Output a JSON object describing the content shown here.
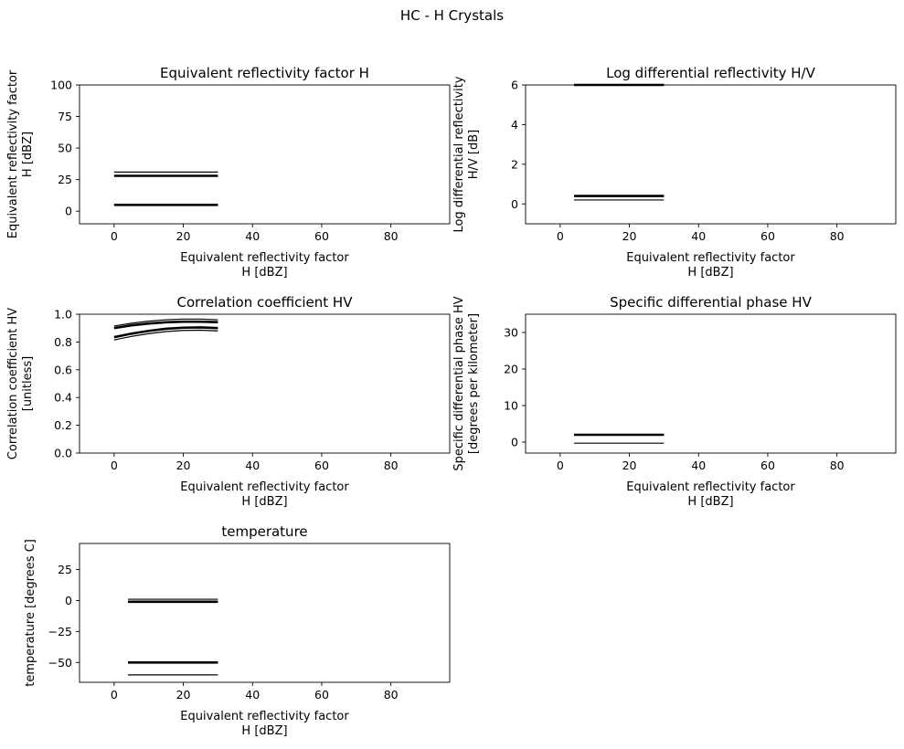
{
  "figure": {
    "suptitle": "HC - H Crystals"
  },
  "chart_data": [
    {
      "id": "zh",
      "type": "line",
      "title": "Equivalent reflectivity factor H",
      "xlabel": [
        "Equivalent reflectivity factor",
        "H [dBZ]"
      ],
      "ylabel": [
        "Equivalent reflectivity factor",
        "H [dBZ]"
      ],
      "xlim": [
        -10,
        97
      ],
      "ylim": [
        -10,
        100
      ],
      "xticks": [
        0,
        20,
        40,
        60,
        80
      ],
      "yticks": [
        0,
        25,
        50,
        75,
        100
      ],
      "series": [
        {
          "x": [
            0,
            30
          ],
          "y": [
            31,
            31
          ],
          "width": "thin"
        },
        {
          "x": [
            0,
            30
          ],
          "y": [
            28,
            28
          ],
          "width": "thick"
        },
        {
          "x": [
            0,
            30
          ],
          "y": [
            5,
            5
          ],
          "width": "thick"
        },
        {
          "x": [
            0,
            30
          ],
          "y": [
            4.5,
            4.5
          ],
          "width": "thin"
        }
      ]
    },
    {
      "id": "zdr",
      "type": "line",
      "title": "Log differential reflectivity H/V",
      "xlabel": [
        "Equivalent reflectivity factor",
        "H [dBZ]"
      ],
      "ylabel": [
        "Log differential reflectivity",
        "H/V [dB]"
      ],
      "xlim": [
        -10,
        97
      ],
      "ylim": [
        -1,
        6
      ],
      "xticks": [
        0,
        20,
        40,
        60,
        80
      ],
      "yticks": [
        0,
        2,
        4,
        6
      ],
      "series": [
        {
          "x": [
            4,
            30
          ],
          "y": [
            6,
            6
          ],
          "width": "thick"
        },
        {
          "x": [
            4,
            30
          ],
          "y": [
            0.4,
            0.4
          ],
          "width": "thick"
        },
        {
          "x": [
            4,
            30
          ],
          "y": [
            0.2,
            0.2
          ],
          "width": "thin"
        }
      ]
    },
    {
      "id": "rho",
      "type": "line",
      "title": "Correlation coefficient HV",
      "xlabel": [
        "Equivalent reflectivity factor",
        "H [dBZ]"
      ],
      "ylabel": [
        "Correlation coefficient HV",
        "[unitless]"
      ],
      "xlim": [
        -10,
        97
      ],
      "ylim": [
        0,
        1
      ],
      "xticks": [
        0,
        20,
        40,
        60,
        80
      ],
      "yticks": [
        0.0,
        0.2,
        0.4,
        0.6,
        0.8,
        1.0
      ],
      "series": [
        {
          "x": [
            0,
            5,
            10,
            15,
            20,
            25,
            30
          ],
          "y": [
            0.915,
            0.935,
            0.95,
            0.96,
            0.965,
            0.965,
            0.96
          ],
          "width": "thin"
        },
        {
          "x": [
            0,
            5,
            10,
            15,
            20,
            25,
            30
          ],
          "y": [
            0.9,
            0.92,
            0.933,
            0.942,
            0.946,
            0.946,
            0.943
          ],
          "width": "thick"
        },
        {
          "x": [
            0,
            5,
            10,
            15,
            20,
            25,
            30
          ],
          "y": [
            0.835,
            0.86,
            0.88,
            0.895,
            0.903,
            0.905,
            0.9
          ],
          "width": "thick"
        },
        {
          "x": [
            0,
            5,
            10,
            15,
            20,
            25,
            30
          ],
          "y": [
            0.815,
            0.84,
            0.86,
            0.875,
            0.883,
            0.885,
            0.88
          ],
          "width": "thin"
        }
      ]
    },
    {
      "id": "kdp",
      "type": "line",
      "title": "Specific differential phase HV",
      "xlabel": [
        "Equivalent reflectivity factor",
        "H [dBZ]"
      ],
      "ylabel": [
        "Specific differential phase HV",
        "[degrees per kilometer]"
      ],
      "xlim": [
        -10,
        97
      ],
      "ylim": [
        -3,
        35
      ],
      "xticks": [
        0,
        20,
        40,
        60,
        80
      ],
      "yticks": [
        0,
        10,
        20,
        30
      ],
      "series": [
        {
          "x": [
            4,
            30
          ],
          "y": [
            2,
            2
          ],
          "width": "thick"
        },
        {
          "x": [
            4,
            30
          ],
          "y": [
            -0.3,
            -0.3
          ],
          "width": "thin"
        }
      ]
    },
    {
      "id": "temp",
      "type": "line",
      "title": "temperature",
      "xlabel": [
        "Equivalent reflectivity factor",
        "H [dBZ]"
      ],
      "ylabel": [
        "temperature [degrees C]"
      ],
      "xlim": [
        -10,
        97
      ],
      "ylim": [
        -66,
        46
      ],
      "xticks": [
        0,
        20,
        40,
        60,
        80
      ],
      "yticks": [
        25,
        0,
        -25,
        -50
      ],
      "series": [
        {
          "x": [
            4,
            30
          ],
          "y": [
            1,
            1
          ],
          "width": "thin"
        },
        {
          "x": [
            4,
            30
          ],
          "y": [
            -1,
            -1
          ],
          "width": "thick"
        },
        {
          "x": [
            4,
            30
          ],
          "y": [
            -50,
            -50
          ],
          "width": "thick"
        },
        {
          "x": [
            4,
            30
          ],
          "y": [
            -60,
            -60
          ],
          "width": "thin"
        }
      ]
    }
  ]
}
